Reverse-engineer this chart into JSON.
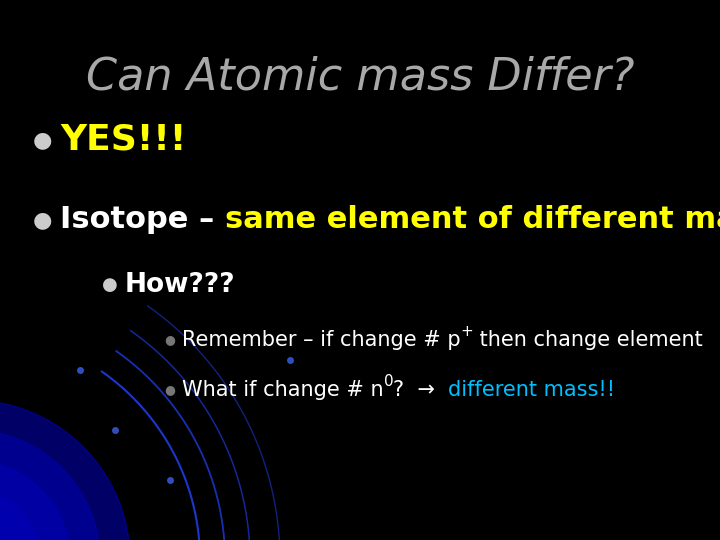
{
  "title": "Can Atomic mass Differ?",
  "title_color": "#a8a8a8",
  "title_fontsize": 32,
  "background_color": "#000000",
  "bullet1_text": "YES!!!",
  "bullet1_color": "#ffff00",
  "bullet1_fontsize": 26,
  "bullet2_prefix": "Isotope – ",
  "bullet2_suffix": "same element of different mass",
  "bullet2_prefix_color": "#ffffff",
  "bullet2_suffix_color": "#ffff00",
  "bullet2_fontsize": 22,
  "sub_bullet_text": "How???",
  "sub_bullet_color": "#ffffff",
  "sub_bullet_fontsize": 19,
  "detail1_prefix": "Remember – if change # p",
  "detail1_sup": "+",
  "detail1_suffix": " then change element",
  "detail1_color": "#ffffff",
  "detail1_fontsize": 15,
  "detail2_prefix": "What if change # n",
  "detail2_sup": "0",
  "detail2_middle": "?  →  ",
  "detail2_suffix": "different mass!!",
  "detail2_prefix_color": "#ffffff",
  "detail2_suffix_color": "#00bfff",
  "detail2_fontsize": 15,
  "bullet_dot_color": "#cccccc",
  "figsize": [
    7.2,
    5.4
  ],
  "dpi": 100
}
